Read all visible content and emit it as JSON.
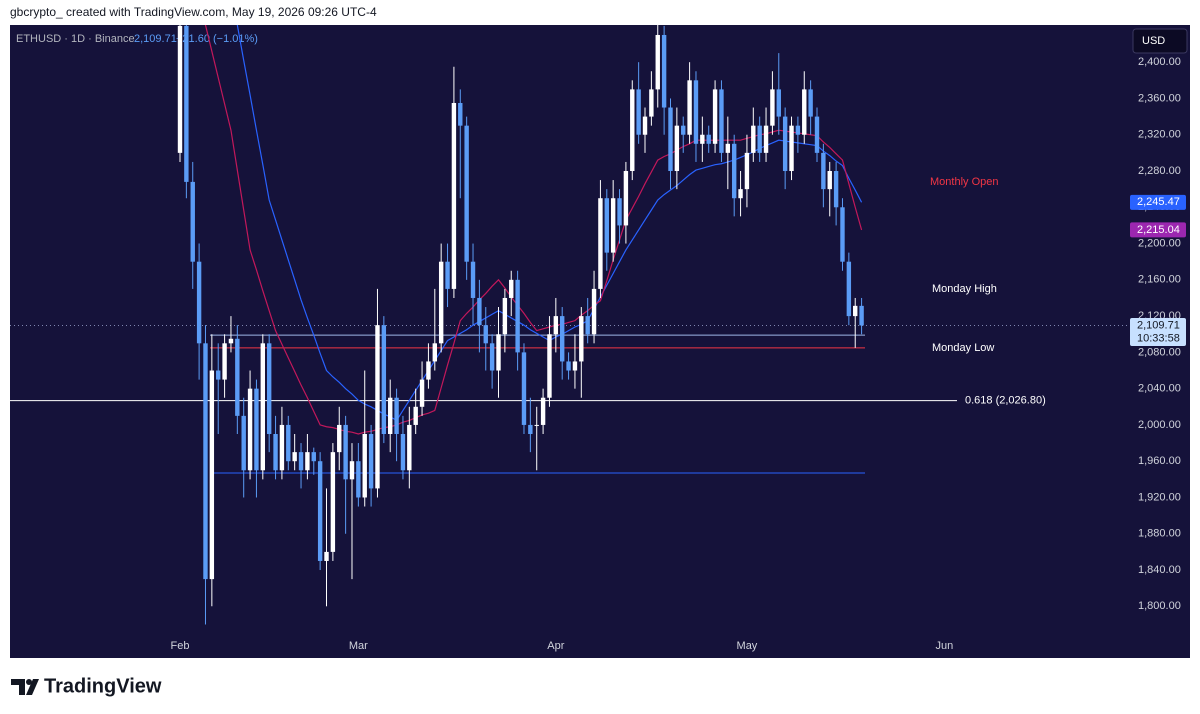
{
  "header": {
    "attribution": "gbcrypto_ created with TradingView.com, May 19, 2026 09:26 UTC-4"
  },
  "chart_data": {
    "type": "candlestick",
    "legend": {
      "symbol": "ETHUSD · 1D · Binance",
      "price": "2,109.71",
      "change": "−21.60 (−1.01%)"
    },
    "currency": "USD",
    "categories": [
      "Feb",
      null,
      null,
      null,
      null,
      null,
      null,
      null,
      null,
      null,
      null,
      null,
      null,
      null,
      null,
      null,
      null,
      null,
      null,
      null,
      null,
      null,
      null,
      null,
      null,
      null,
      null,
      null,
      "Mar",
      null,
      null,
      null,
      null,
      null,
      null,
      null,
      null,
      null,
      null,
      null,
      null,
      null,
      null,
      null,
      null,
      null,
      null,
      null,
      null,
      null,
      null,
      null,
      null,
      null,
      null,
      null,
      null,
      null,
      null,
      "Apr",
      null,
      null,
      null,
      null,
      null,
      null,
      null,
      null,
      null,
      null,
      null,
      null,
      null,
      null,
      null,
      null,
      null,
      null,
      null,
      null,
      null,
      null,
      null,
      null,
      null,
      null,
      null,
      null,
      null,
      "May",
      null,
      null,
      null,
      null,
      null,
      null,
      null,
      null,
      null,
      null,
      null,
      null,
      null,
      null,
      null,
      null,
      null,
      null,
      null,
      null,
      null,
      null,
      null,
      null,
      null,
      null,
      null,
      null,
      null,
      null,
      "Jun"
    ],
    "open": [
      2300,
      2440,
      2268,
      2180,
      2090,
      1830,
      2060,
      2050,
      2090,
      2095,
      2010,
      1950,
      2040,
      1950,
      2090,
      1990,
      1950,
      2000,
      1960,
      1970,
      1950,
      1970,
      1960,
      1850,
      1860,
      1970,
      2000,
      1940,
      1960,
      1920,
      1990,
      1930,
      2110,
      1990,
      2030,
      1990,
      1950,
      2000,
      2020,
      2050,
      2070,
      2090,
      2180,
      2150,
      2355,
      2330,
      2180,
      2140,
      2110,
      2090,
      2060,
      2100,
      2140,
      2160,
      2080,
      2000,
      2000,
      2000,
      2030,
      2100,
      2120,
      2070,
      2060,
      2070,
      2120,
      2100,
      2150,
      2250,
      2190,
      2250,
      2220,
      2280,
      2370,
      2320,
      2340,
      2370,
      2430,
      2350,
      2280,
      2330,
      2320,
      2380,
      2310,
      2320,
      2310,
      2370,
      2300,
      2310,
      2250,
      2260,
      2300,
      2330,
      2300,
      2330,
      2370,
      2340,
      2280,
      2330,
      2320,
      2370,
      2340,
      2300,
      2260,
      2280,
      2240,
      2180,
      2120,
      2131.31,
      null,
      null,
      null,
      null,
      null,
      null,
      null,
      null,
      null,
      null,
      null,
      null,
      null
    ],
    "high": [
      2470,
      2445,
      2290,
      2200,
      2110,
      2100,
      2090,
      2100,
      2120,
      2110,
      2030,
      2060,
      2050,
      2100,
      2100,
      2010,
      2020,
      2010,
      1990,
      1980,
      1990,
      1975,
      1970,
      1930,
      1980,
      2020,
      2010,
      1980,
      1980,
      2060,
      2000,
      2150,
      2120,
      2050,
      2040,
      2010,
      2020,
      2040,
      2070,
      2090,
      2150,
      2200,
      2200,
      2395,
      2370,
      2340,
      2200,
      2160,
      2130,
      2100,
      2130,
      2150,
      2170,
      2170,
      2090,
      2030,
      2020,
      2040,
      2120,
      2140,
      2130,
      2080,
      2100,
      2130,
      2140,
      2170,
      2270,
      2260,
      2270,
      2260,
      2290,
      2380,
      2400,
      2350,
      2390,
      2445,
      2440,
      2360,
      2350,
      2340,
      2400,
      2390,
      2340,
      2330,
      2380,
      2380,
      2340,
      2320,
      2280,
      2320,
      2350,
      2340,
      2350,
      2390,
      2410,
      2350,
      2340,
      2340,
      2390,
      2380,
      2350,
      2310,
      2290,
      2290,
      2250,
      2190,
      2140,
      2140,
      null,
      null,
      null,
      null,
      null,
      null,
      null,
      null,
      null,
      null,
      null,
      null,
      null
    ],
    "low": [
      2290,
      2250,
      2150,
      2050,
      1780,
      1800,
      1990,
      2030,
      2080,
      1990,
      1920,
      1940,
      1920,
      1940,
      1970,
      1940,
      1940,
      1950,
      1950,
      1930,
      1940,
      1945,
      1840,
      1800,
      1850,
      1950,
      1880,
      1830,
      1910,
      1910,
      1910,
      1920,
      1980,
      1970,
      1960,
      1940,
      1930,
      1990,
      2010,
      2040,
      2060,
      2080,
      2130,
      2140,
      2250,
      2160,
      2110,
      2080,
      2060,
      2040,
      2030,
      2080,
      2120,
      2060,
      1990,
      1970,
      1950,
      1990,
      2020,
      2080,
      2050,
      2050,
      2040,
      2030,
      2090,
      2090,
      2140,
      2170,
      2180,
      2200,
      2200,
      2270,
      2310,
      2300,
      2330,
      2350,
      2320,
      2260,
      2260,
      2300,
      2310,
      2290,
      2290,
      2300,
      2300,
      2290,
      2260,
      2230,
      2230,
      2240,
      2290,
      2290,
      2290,
      2320,
      2320,
      2260,
      2270,
      2300,
      2310,
      2320,
      2290,
      2240,
      2230,
      2220,
      2170,
      2110,
      2085,
      2100,
      null,
      null,
      null,
      null,
      null,
      null,
      null,
      null,
      null,
      null,
      null,
      null,
      null
    ],
    "close": [
      2440,
      2268,
      2180,
      2090,
      1830,
      2060,
      2050,
      2090,
      2095,
      2010,
      1950,
      2040,
      1950,
      2090,
      1990,
      1950,
      2000,
      1960,
      1970,
      1950,
      1970,
      1960,
      1850,
      1860,
      1970,
      2000,
      1940,
      1960,
      1920,
      1990,
      1930,
      2110,
      1990,
      2030,
      1990,
      1950,
      2000,
      2020,
      2050,
      2070,
      2090,
      2180,
      2150,
      2355,
      2330,
      2180,
      2140,
      2110,
      2090,
      2060,
      2100,
      2140,
      2160,
      2080,
      2000,
      1990,
      2000,
      2030,
      2100,
      2120,
      2070,
      2060,
      2070,
      2120,
      2100,
      2150,
      2250,
      2190,
      2250,
      2220,
      2280,
      2370,
      2320,
      2340,
      2370,
      2430,
      2350,
      2280,
      2330,
      2320,
      2380,
      2310,
      2320,
      2310,
      2370,
      2300,
      2310,
      2250,
      2260,
      2300,
      2330,
      2300,
      2330,
      2370,
      2340,
      2280,
      2330,
      2320,
      2370,
      2340,
      2300,
      2260,
      2280,
      2240,
      2180,
      2120,
      2131.31,
      2109.71,
      null,
      null,
      null,
      null,
      null,
      null,
      null,
      null,
      null,
      null,
      null,
      null,
      null
    ],
    "up_color": "#ffffff",
    "down_color": "#5b9cf6",
    "series": [
      {
        "color": "#2962ff",
        "values": [
          null,
          null,
          null,
          null,
          null,
          null,
          null,
          null,
          null,
          2441,
          2402,
          2364,
          2325,
          2287,
          2248,
          2226,
          2204,
          2182,
          2160,
          2138,
          2118,
          2099,
          2079,
          2060,
          2053,
          2047,
          2040,
          2034,
          2027,
          2023,
          2020,
          2016,
          2012,
          2009,
          2005,
          2016,
          2027,
          2038,
          2049,
          2060,
          2071,
          2082,
          2093,
          2097,
          2101,
          2105,
          2110,
          2114,
          2118,
          2122,
          2126,
          2122,
          2118,
          2114,
          2110,
          2105,
          2101,
          2097,
          2093,
          2097,
          2100,
          2104,
          2108,
          2111,
          2115,
          2128,
          2141,
          2154,
          2167,
          2180,
          2193,
          2204,
          2215,
          2226,
          2237,
          2248,
          2254,
          2259,
          2264,
          2270,
          2276,
          2281,
          2283,
          2285,
          2287,
          2288,
          2290,
          2292,
          2295,
          2298,
          2301,
          2305,
          2308,
          2311,
          2314,
          2313,
          2312,
          2311,
          2310,
          2309,
          2308,
          2302,
          2297,
          2291,
          2286,
          2272,
          2259,
          2245.47,
          null,
          null,
          null,
          null,
          null,
          null,
          null,
          null,
          null,
          null,
          null,
          null,
          null
        ]
      },
      {
        "color": "#c2185b",
        "values": [
          null,
          null,
          null,
          null,
          2441,
          2412,
          2383,
          2354,
          2325,
          2281,
          2237,
          2193,
          2171,
          2148,
          2126,
          2104,
          2089,
          2074,
          2059,
          2044,
          2030,
          2015,
          2000,
          1998,
          1997,
          1995,
          1993,
          1992,
          1990,
          1992,
          1993,
          1995,
          1997,
          1998,
          2000,
          2003,
          2005,
          2008,
          2011,
          2013,
          2016,
          2041,
          2066,
          2090,
          2115,
          2123,
          2130,
          2138,
          2145,
          2153,
          2160,
          2151,
          2141,
          2132,
          2123,
          2113,
          2104,
          2106,
          2108,
          2110,
          2111,
          2113,
          2115,
          2121,
          2126,
          2132,
          2137,
          2159,
          2182,
          2204,
          2226,
          2239,
          2252,
          2266,
          2279,
          2292,
          2296,
          2299,
          2303,
          2307,
          2310,
          2314,
          2314,
          2314,
          2314,
          2314,
          2314,
          2314,
          2314,
          2316,
          2318,
          2320,
          2321,
          2323,
          2325,
          2324,
          2323,
          2322,
          2321,
          2320,
          2319,
          2312,
          2306,
          2299,
          2292,
          2266,
          2240,
          2215.04,
          null,
          null,
          null,
          null,
          null,
          null,
          null,
          null,
          null,
          null,
          null,
          null,
          null
        ]
      }
    ],
    "ylim": [
      1743,
      2441
    ],
    "yticks": [
      {
        "value": 1800,
        "label": "1,800.00"
      },
      {
        "value": 1840,
        "label": "1,840.00"
      },
      {
        "value": 1880,
        "label": "1,880.00"
      },
      {
        "value": 1920,
        "label": "1,920.00"
      },
      {
        "value": 1960,
        "label": "1,960.00"
      },
      {
        "value": 2000,
        "label": "2,000.00"
      },
      {
        "value": 2040,
        "label": "2,040.00"
      },
      {
        "value": 2080,
        "label": "2,080.00"
      },
      {
        "value": 2120,
        "label": "2,120.00"
      },
      {
        "value": 2160,
        "label": "2,160.00"
      },
      {
        "value": 2200,
        "label": "2,200.00"
      },
      {
        "value": 2240,
        "label": "2,240.00"
      },
      {
        "value": 2280,
        "label": "2,280.00"
      },
      {
        "value": 2320,
        "label": "2,320.00"
      },
      {
        "value": 2360,
        "label": "2,360.00"
      },
      {
        "value": 2400,
        "label": "2,400.00"
      }
    ],
    "grid": false,
    "levels": [
      {
        "label": "0.618 (2,026.80)",
        "value": 2026.8,
        "color": "#ffffff"
      },
      {
        "label": "Monday Low",
        "value": 2085,
        "color": "#f23645"
      },
      {
        "value": 2099,
        "color": "#9fb7e8"
      },
      {
        "value": 1947,
        "color": "#2962ff"
      }
    ],
    "annotations": [
      {
        "text": "Monthly Open",
        "color": "#f23645"
      },
      {
        "text": "Monday High",
        "color": "#ffffff"
      }
    ],
    "price_tags": [
      {
        "label": "2,245.47",
        "value": 2245.47,
        "color": "#2962ff"
      },
      {
        "label": "2,215.04",
        "value": 2215.04,
        "color": "#9c27b0"
      },
      {
        "label": "2,109.71",
        "value": 2109.71,
        "color": "#c7e0ff",
        "sub": "10:33:58"
      }
    ]
  },
  "footer": {
    "brand": "TradingView"
  }
}
